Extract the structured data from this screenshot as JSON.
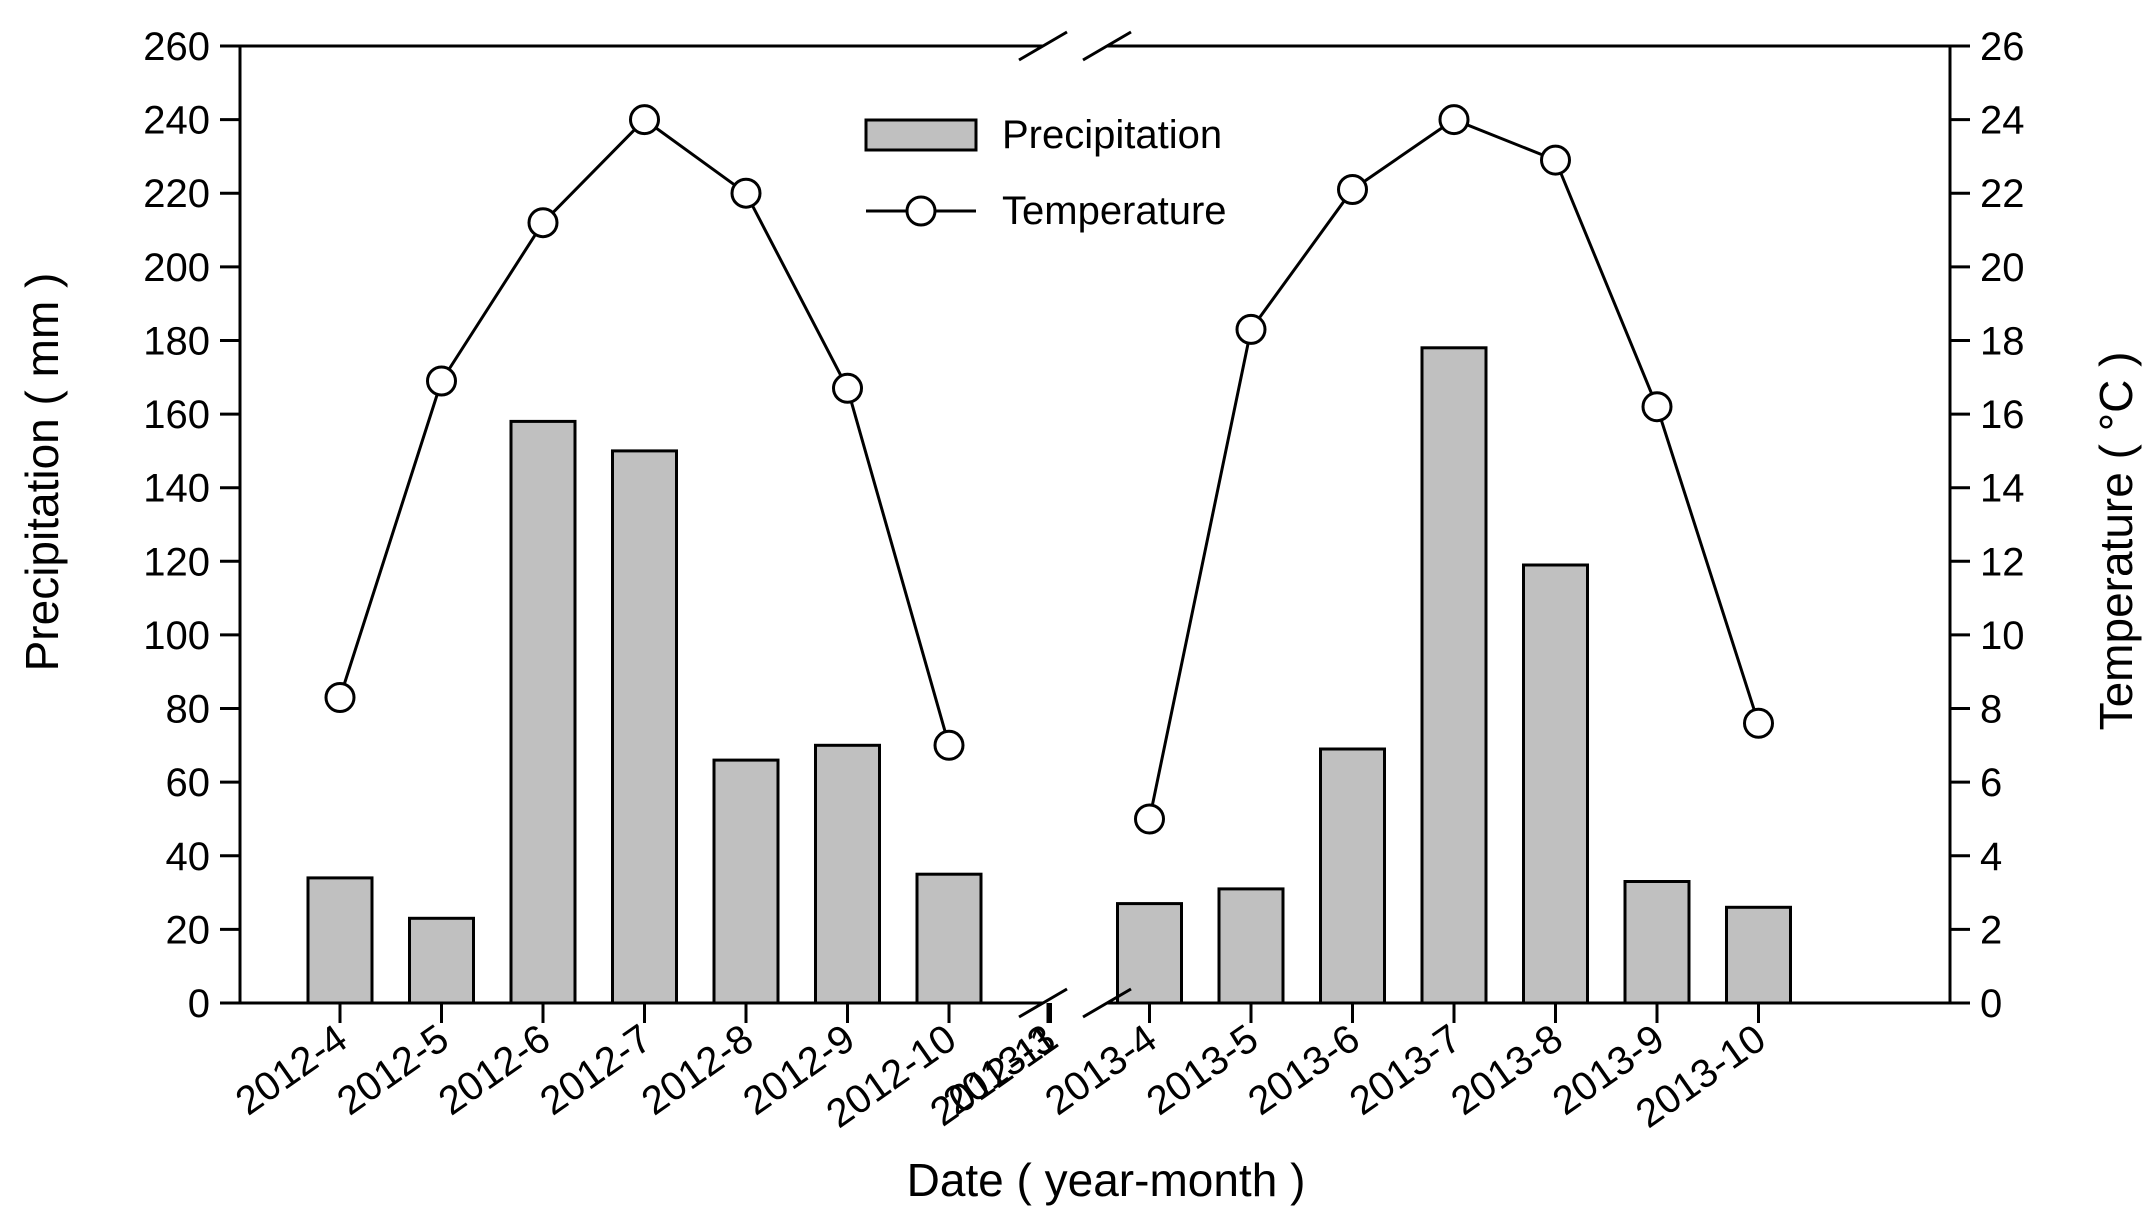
{
  "chart_data": {
    "type": "bar",
    "title": "",
    "xlabel": "Date ( year-month )",
    "ylabel": "Precipitation ( mm )",
    "y2label": "Temperature ( °C )",
    "ylim": [
      0,
      260
    ],
    "y2lim": [
      0,
      26
    ],
    "yticks": [
      "0",
      "20",
      "40",
      "60",
      "80",
      "100",
      "120",
      "140",
      "160",
      "180",
      "200",
      "220",
      "240",
      "260"
    ],
    "y2ticks": [
      "0",
      "2",
      "4",
      "6",
      "8",
      "10",
      "12",
      "14",
      "16",
      "18",
      "20",
      "22",
      "24",
      "26"
    ],
    "categories": [
      "2012-4",
      "2012-5",
      "2012-6",
      "2012-7",
      "2012-8",
      "2012-9",
      "2012-10",
      "2012-11",
      "2013-3",
      "2013-4",
      "2013-5",
      "2013-6",
      "2013-7",
      "2013-8",
      "2013-9",
      "2013-10"
    ],
    "axis_break_between": [
      "2012-11",
      "2013-3"
    ],
    "series": [
      {
        "name": "Precipitation",
        "type": "bar",
        "axis": "left",
        "color": "#c0c0c0",
        "values": [
          34,
          23,
          158,
          150,
          66,
          70,
          35,
          null,
          null,
          27,
          31,
          69,
          178,
          119,
          33,
          26
        ]
      },
      {
        "name": "Temperature",
        "type": "line",
        "axis": "right",
        "marker": "open-circle",
        "color": "#000000",
        "values": [
          8.3,
          16.9,
          21.2,
          24.0,
          22.0,
          16.7,
          7.0,
          null,
          null,
          5.0,
          18.3,
          22.1,
          24.0,
          22.9,
          16.2,
          7.6
        ]
      }
    ],
    "legend_position": "top-center",
    "grid": false
  }
}
